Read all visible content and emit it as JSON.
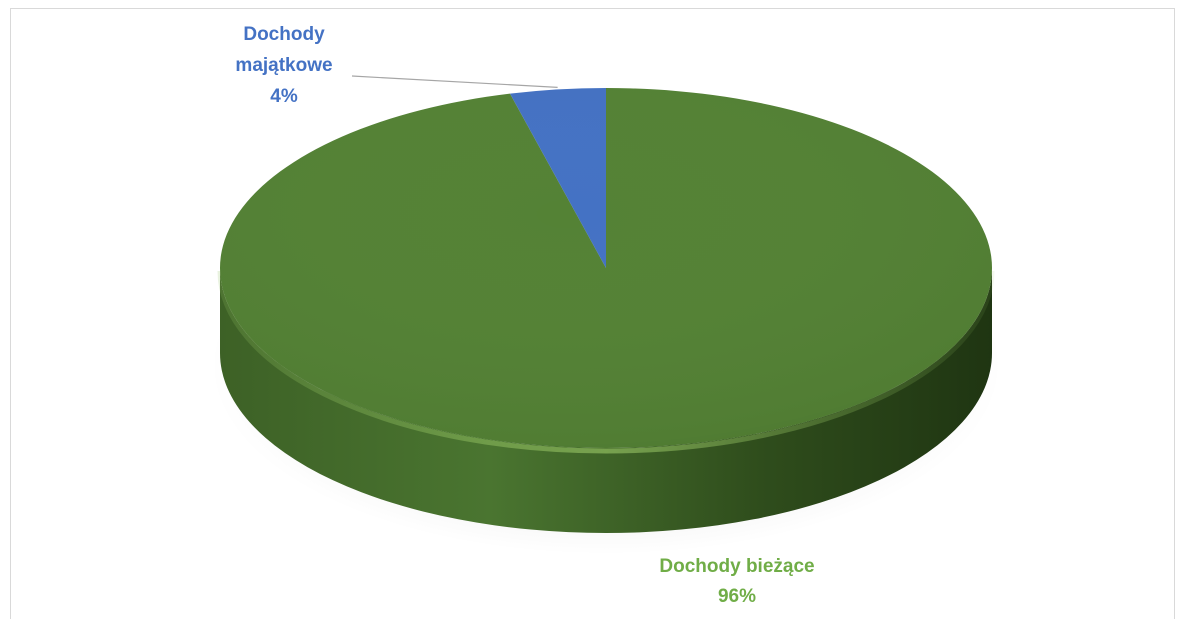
{
  "chart_data": {
    "type": "pie",
    "title": "",
    "slices": [
      {
        "name": "Dochody bieżące",
        "value": 96,
        "label_lines": [
          "Dochody bieżące",
          "96%"
        ],
        "color": "#548235",
        "label_color": "#70ad47"
      },
      {
        "name": "Dochody majątkowe",
        "value": 4,
        "label_lines": [
          "Dochody",
          "majątkowe",
          "4%"
        ],
        "color": "#4472c4",
        "label_color": "#4472c4"
      }
    ],
    "three_d": true,
    "legend": "none"
  }
}
